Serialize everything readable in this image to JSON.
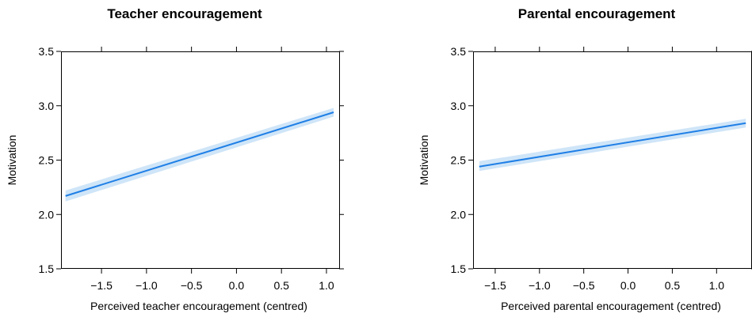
{
  "chart_data": [
    {
      "type": "line",
      "title": "Teacher encouragement",
      "xlabel": "Perceived teacher encouragement (centred)",
      "ylabel": "Motivation",
      "xlim": [
        -1.95,
        1.15
      ],
      "ylim": [
        1.5,
        3.5
      ],
      "x_ticks": [
        -1.5,
        -1.0,
        -0.5,
        0.0,
        0.5,
        1.0
      ],
      "x_tick_labels": [
        "−1.5",
        "−1.0",
        "−0.5",
        "0.0",
        "0.5",
        "1.0"
      ],
      "y_ticks": [
        1.5,
        2.0,
        2.5,
        3.0,
        3.5
      ],
      "y_tick_labels": [
        "1.5",
        "2.0",
        "2.5",
        "3.0",
        "3.5"
      ],
      "grid": false,
      "line_color": "#1f7fe6",
      "band_color": "#cfe5f8",
      "series": [
        {
          "x": [
            -1.9,
            1.08
          ],
          "y": [
            2.17,
            2.94
          ],
          "lower": [
            2.12,
            2.9
          ],
          "upper": [
            2.22,
            2.98
          ]
        }
      ]
    },
    {
      "type": "line",
      "title": "Parental encouragement",
      "xlabel": "Perceived parental encouragement (centred)",
      "ylabel": "Motivation",
      "xlim": [
        -1.75,
        1.4
      ],
      "ylim": [
        1.5,
        3.5
      ],
      "x_ticks": [
        -1.5,
        -1.0,
        -0.5,
        0.0,
        0.5,
        1.0
      ],
      "x_tick_labels": [
        "−1.5",
        "−1.0",
        "−0.5",
        "0.0",
        "0.5",
        "1.0"
      ],
      "y_ticks": [
        1.5,
        2.0,
        2.5,
        3.0,
        3.5
      ],
      "y_tick_labels": [
        "1.5",
        "2.0",
        "2.5",
        "3.0",
        "3.5"
      ],
      "grid": false,
      "line_color": "#1f7fe6",
      "band_color": "#cfe5f8",
      "series": [
        {
          "x": [
            -1.68,
            1.33
          ],
          "y": [
            2.44,
            2.84
          ],
          "lower": [
            2.4,
            2.8
          ],
          "upper": [
            2.49,
            2.88
          ]
        }
      ]
    }
  ]
}
